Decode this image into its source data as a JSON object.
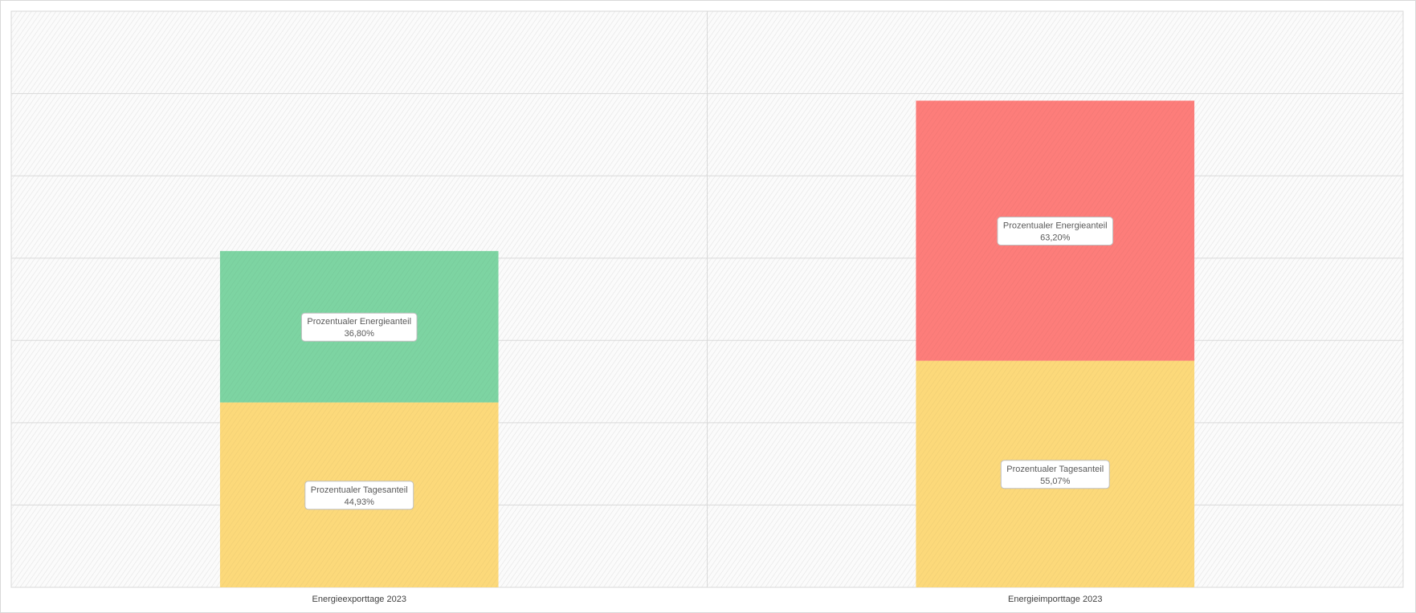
{
  "chart_data": {
    "type": "bar",
    "stacked": true,
    "categories": [
      "Energieexporttage 2023",
      "Energieimporttage 2023"
    ],
    "series": [
      {
        "name": "Prozentualer Tagesanteil",
        "values": [
          44.93,
          55.07
        ],
        "labels": [
          "44,93%",
          "55,07%"
        ],
        "colors": [
          "#fcd97a",
          "#fcd97a"
        ]
      },
      {
        "name": "Prozentualer Energieanteil",
        "values": [
          36.8,
          63.2
        ],
        "labels": [
          "36,80%",
          "63,20%"
        ],
        "colors": [
          "#7dd4a2",
          "#fd7d7a"
        ]
      }
    ],
    "ylim": [
      0,
      140
    ],
    "y_gridline_step": 20,
    "grid": true,
    "legend": "none",
    "title": "",
    "xlabel": "",
    "ylabel": ""
  }
}
